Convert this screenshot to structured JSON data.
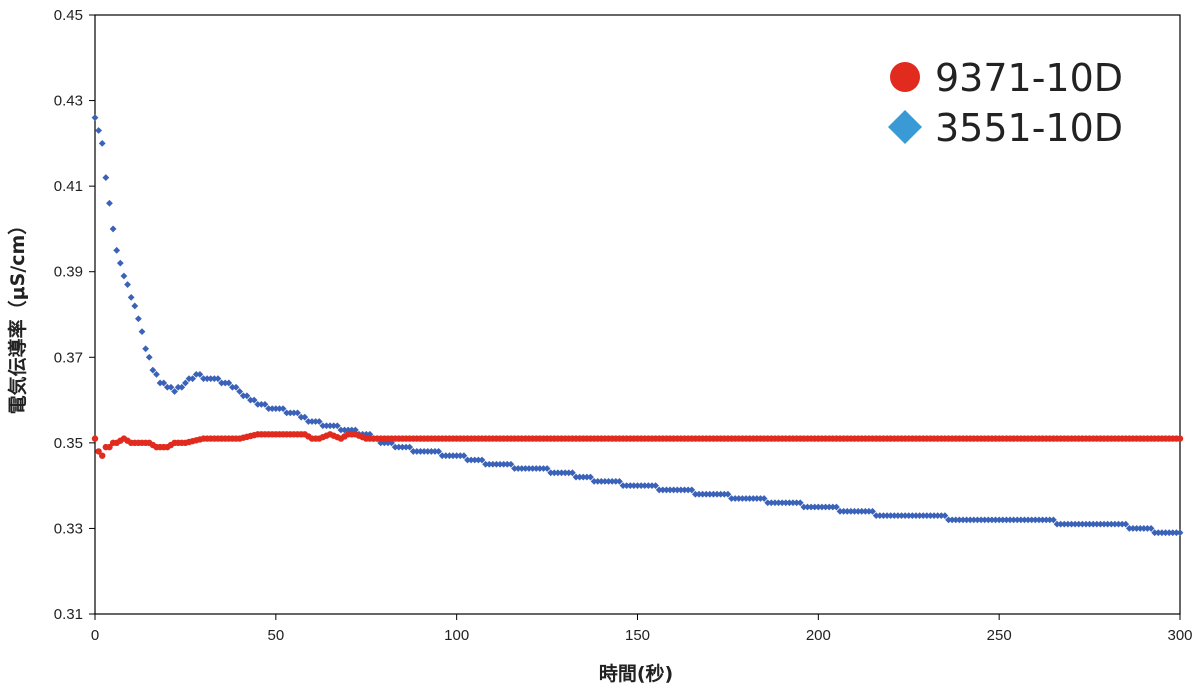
{
  "chart_data": {
    "type": "scatter",
    "title": "",
    "xlabel": "時間(秒)",
    "ylabel": "電気伝導率（μS/cm）",
    "xlim": [
      0,
      300
    ],
    "ylim": [
      0.31,
      0.45
    ],
    "x_ticks": [
      0,
      50,
      100,
      150,
      200,
      250,
      300
    ],
    "y_ticks": [
      0.31,
      0.33,
      0.35,
      0.37,
      0.39,
      0.41,
      0.43,
      0.45
    ],
    "x_tick_labels": [
      "0",
      "50",
      "100",
      "150",
      "200",
      "250",
      "300"
    ],
    "y_tick_labels": [
      "0.31",
      "0.33",
      "0.35",
      "0.37",
      "0.39",
      "0.41",
      "0.43",
      "0.45"
    ],
    "grid": false,
    "legend_position": "top-right",
    "series": [
      {
        "name": "9371-10D",
        "marker": "circle",
        "color": "#e02b1e",
        "x": [
          0,
          1,
          2,
          3,
          4,
          5,
          6,
          8,
          10,
          12,
          15,
          17,
          20,
          22,
          25,
          30,
          35,
          40,
          45,
          50,
          55,
          58,
          60,
          62,
          65,
          68,
          70,
          72,
          75,
          80,
          90,
          100,
          125,
          150,
          175,
          200,
          225,
          250,
          275,
          300
        ],
        "y": [
          0.351,
          0.348,
          0.347,
          0.349,
          0.349,
          0.35,
          0.35,
          0.351,
          0.35,
          0.35,
          0.35,
          0.349,
          0.349,
          0.35,
          0.35,
          0.351,
          0.351,
          0.351,
          0.352,
          0.352,
          0.352,
          0.352,
          0.351,
          0.351,
          0.352,
          0.351,
          0.352,
          0.352,
          0.351,
          0.351,
          0.351,
          0.351,
          0.351,
          0.351,
          0.351,
          0.351,
          0.351,
          0.351,
          0.351,
          0.351
        ]
      },
      {
        "name": "3551-10D",
        "marker": "diamond",
        "color": "#3a62b8",
        "x": [
          0,
          2,
          3,
          4,
          5,
          6,
          7,
          8,
          10,
          12,
          14,
          16,
          18,
          20,
          22,
          25,
          28,
          30,
          33,
          36,
          40,
          45,
          50,
          55,
          60,
          65,
          70,
          75,
          80,
          90,
          100,
          110,
          120,
          130,
          140,
          150,
          160,
          170,
          180,
          190,
          200,
          210,
          220,
          230,
          240,
          250,
          260,
          270,
          280,
          290,
          295,
          300
        ],
        "y": [
          0.426,
          0.42,
          0.412,
          0.406,
          0.4,
          0.395,
          0.392,
          0.389,
          0.384,
          0.379,
          0.372,
          0.367,
          0.364,
          0.363,
          0.362,
          0.364,
          0.366,
          0.365,
          0.365,
          0.364,
          0.362,
          0.359,
          0.358,
          0.357,
          0.355,
          0.354,
          0.353,
          0.352,
          0.35,
          0.348,
          0.347,
          0.345,
          0.344,
          0.343,
          0.341,
          0.34,
          0.339,
          0.338,
          0.337,
          0.336,
          0.335,
          0.334,
          0.333,
          0.333,
          0.332,
          0.332,
          0.332,
          0.331,
          0.331,
          0.33,
          0.329,
          0.329
        ]
      }
    ]
  }
}
